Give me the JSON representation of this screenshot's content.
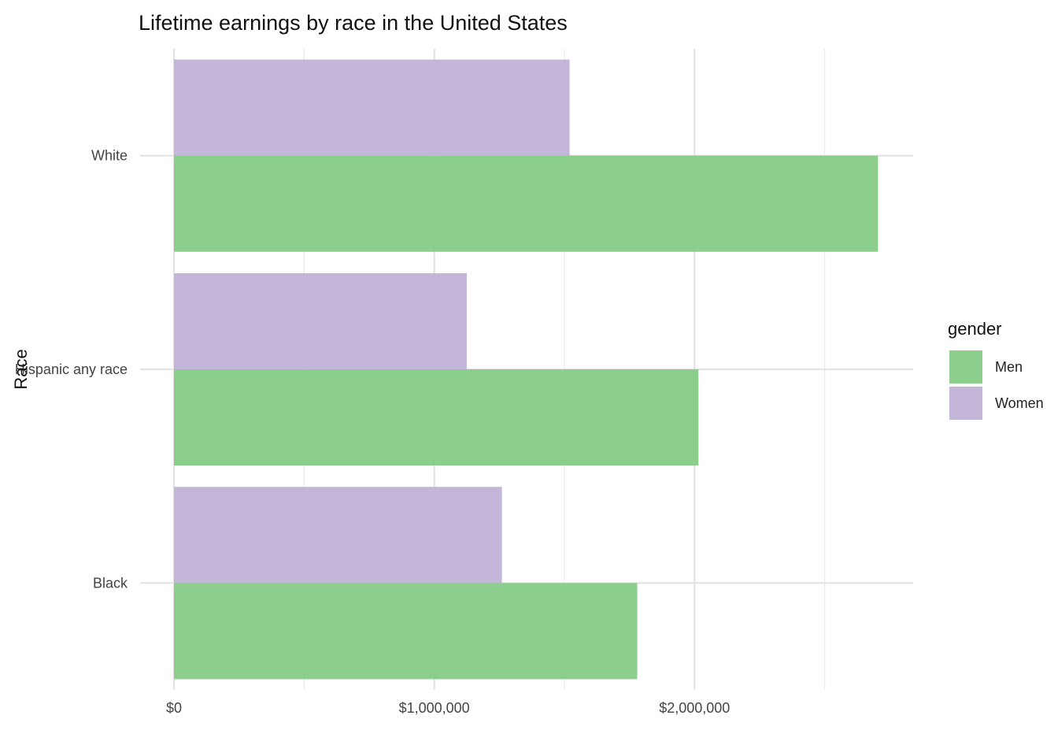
{
  "chart_data": {
    "type": "bar",
    "orientation": "horizontal",
    "title": "Lifetime earnings by race in the United States",
    "xlabel": "",
    "ylabel": "Race",
    "categories": [
      "White",
      "Hispanic any race",
      "Black"
    ],
    "series": [
      {
        "name": "Men",
        "color": "#7fc97f",
        "values": [
          2705000,
          2015000,
          1780000
        ]
      },
      {
        "name": "Women",
        "color": "#beaed4",
        "values": [
          1520000,
          1125000,
          1260000
        ]
      }
    ],
    "xlim": [
      0,
      2840000
    ],
    "x_ticks": [
      0,
      1000000,
      2000000
    ],
    "x_tick_labels": [
      "$0",
      "$1,000,000",
      "$2,000,000"
    ],
    "x_minor_ticks": [
      500000,
      1500000,
      2500000
    ],
    "legend": {
      "title": "gender",
      "position": "right"
    },
    "grid": true,
    "bar_opacity": 0.9
  }
}
